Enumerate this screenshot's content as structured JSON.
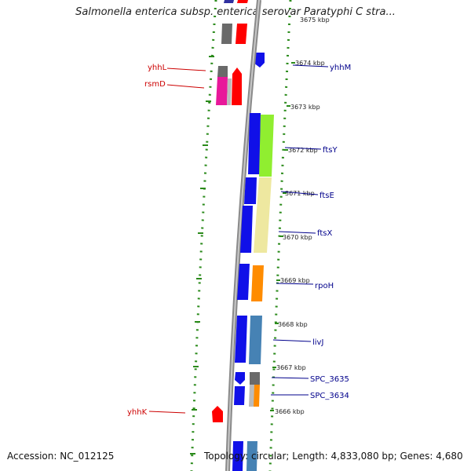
{
  "title": "Salmonella enterica subsp. enterica serovar Paratyphi C stra...",
  "footer": {
    "accession": "Accession: NC_012125",
    "topology": "Topology: circular; Length: 4,833,080 bp; Genes: 4,680"
  },
  "colors": {
    "backbone": "#8a8a8a",
    "dots": "#2a8a1a",
    "forward_label": "#cc0000",
    "reverse_label": "#00008b",
    "blue": "#1010e8",
    "red": "#ff0000",
    "magenta": "#e8189a",
    "gray": "#6a6a6a",
    "steel": "#4682b4",
    "orange": "#ff8c00",
    "green": "#90ee30",
    "khaki": "#eee8a0"
  },
  "ticks": [
    {
      "label": "3675 kbp"
    },
    {
      "label": "3674 kbp"
    },
    {
      "label": "3673 kbp"
    },
    {
      "label": "3672 kbp"
    },
    {
      "label": "3671 kbp"
    },
    {
      "label": "3670 kbp"
    },
    {
      "label": "3669 kbp"
    },
    {
      "label": "3668 kbp"
    },
    {
      "label": "3667 kbp"
    },
    {
      "label": "3666 kbp"
    }
  ],
  "genes_left": [
    {
      "label": "yhhL"
    },
    {
      "label": "rsmD"
    },
    {
      "label": "yhhK"
    }
  ],
  "genes_right": [
    {
      "label": "yhhM"
    },
    {
      "label": "ftsY"
    },
    {
      "label": "ftsE"
    },
    {
      "label": "ftsX"
    },
    {
      "label": "rpoH"
    },
    {
      "label": "livJ"
    },
    {
      "label": "SPC_3635"
    },
    {
      "label": "SPC_3634"
    }
  ]
}
